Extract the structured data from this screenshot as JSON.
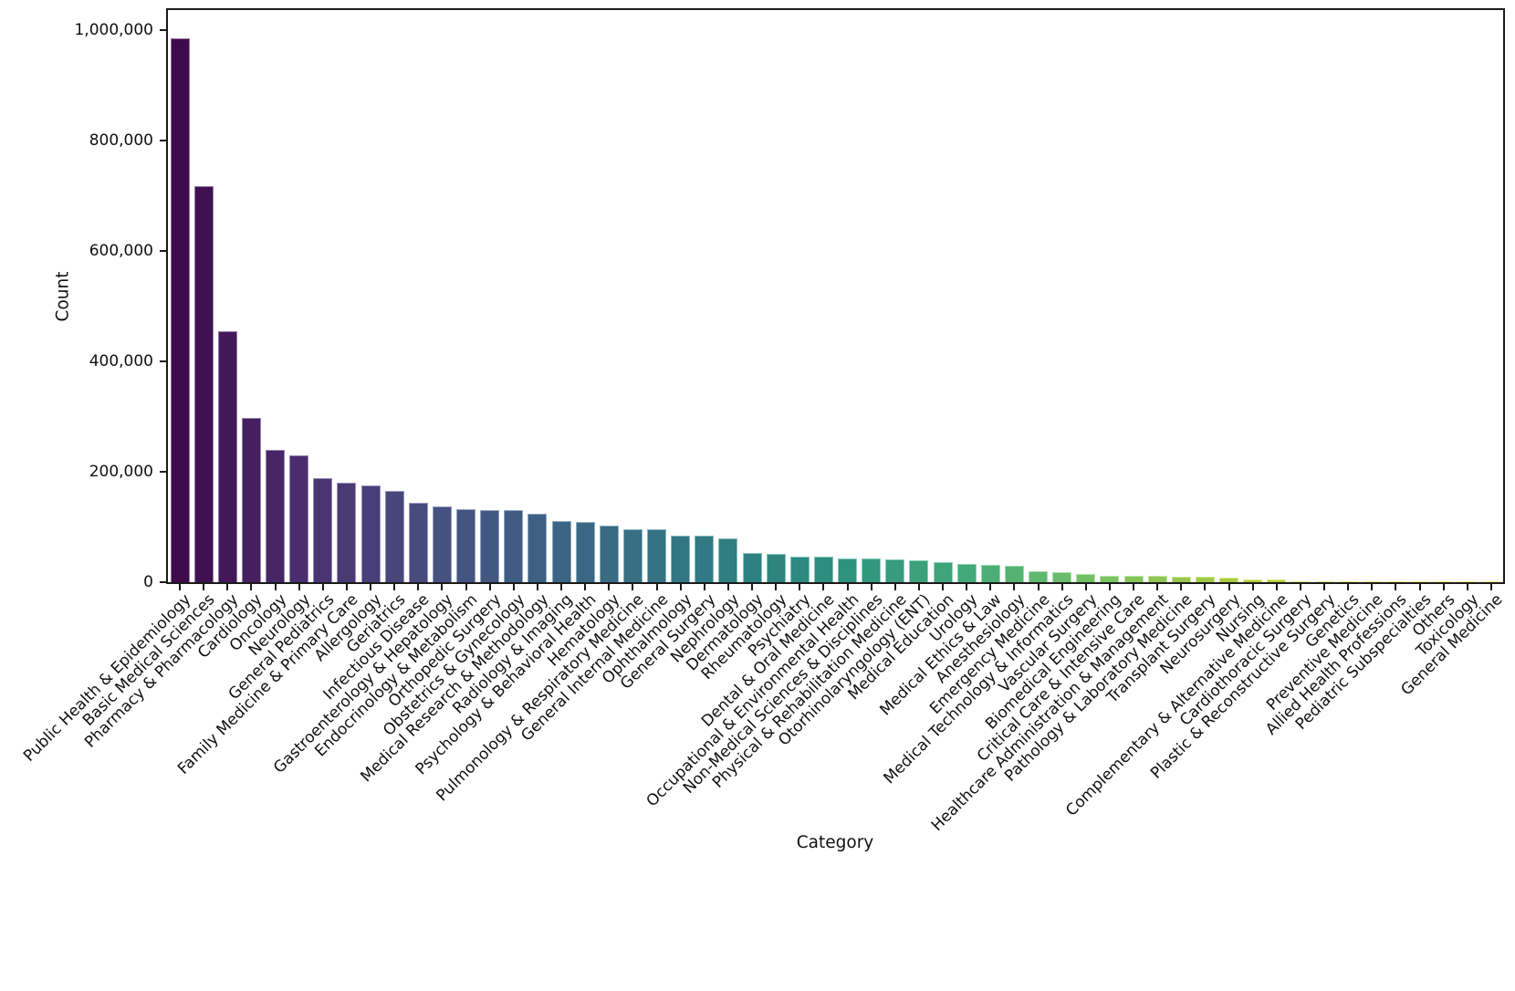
{
  "figure": {
    "background": "#ffffff",
    "spine_color": "#1a1a1a",
    "text_color": "#111111"
  },
  "chart_data": {
    "type": "bar",
    "title": "",
    "xlabel": "Category",
    "ylabel": "Count",
    "ylim": [
      0,
      1036000
    ],
    "grid": false,
    "legend": "none",
    "x_tick_rotation": 45,
    "bar_color_palette": "viridis-desaturated",
    "colormap_anchors": [
      "#440154",
      "#482878",
      "#3e4a89",
      "#31688e",
      "#26828e",
      "#1f9e89",
      "#35b779",
      "#6ece58",
      "#b5de2b",
      "#dfe318",
      "#fde725"
    ],
    "y_tick_values": [
      0,
      200000,
      400000,
      600000,
      800000,
      1000000
    ],
    "y_tick_labels": [
      "0",
      "200,000",
      "400,000",
      "600,000",
      "800,000",
      "1,000,000"
    ],
    "categories": [
      "Public Health & Epidemiology",
      "Basic Medical Sciences",
      "Pharmacy & Pharmacology",
      "Cardiology",
      "Oncology",
      "Neurology",
      "General Pediatrics",
      "Family Medicine & Primary Care",
      "Allergology",
      "Geriatrics",
      "Infectious Disease",
      "Gastroenterology & Hepatology",
      "Endocrinology & Metabolism",
      "Orthopedic Surgery",
      "Obstetrics & Gynecology",
      "Medical Research & Methodology",
      "Radiology & Imaging",
      "Psychology & Behavioral Health",
      "Hematology",
      "Pulmonology & Respiratory Medicine",
      "General Internal Medicine",
      "Ophthalmology",
      "General Surgery",
      "Nephrology",
      "Dermatology",
      "Rheumatology",
      "Psychiatry",
      "Dental & Oral Medicine",
      "Occupational & Environmental Health",
      "Non-Medical Sciences & Disciplines",
      "Physical & Rehabilitation Medicine",
      "Otorhinolaryngology (ENT)",
      "Medical Education",
      "Urology",
      "Medical Ethics & Law",
      "Anesthesiology",
      "Emergency Medicine",
      "Medical Technology & Informatics",
      "Vascular Surgery",
      "Biomedical Engineering",
      "Critical Care & Intensive Care",
      "Healthcare Administration & Management",
      "Pathology & Laboratory Medicine",
      "Transplant Surgery",
      "Neurosurgery",
      "Nursing",
      "Complementary & Alternative Medicine",
      "Cardiothoracic Surgery",
      "Plastic & Reconstructive Surgery",
      "Genetics",
      "Preventive Medicine",
      "Allied Health Professions",
      "Pediatric Subspecialties",
      "Others",
      "Toxicology",
      "General Medicine"
    ],
    "values": [
      985000,
      718000,
      455000,
      298000,
      239000,
      230000,
      188000,
      181000,
      175000,
      165000,
      144000,
      137000,
      132000,
      131000,
      130000,
      124000,
      110000,
      109000,
      103000,
      96500,
      96000,
      85000,
      83500,
      79500,
      52500,
      52000,
      47000,
      46500,
      42500,
      42500,
      42000,
      39000,
      37000,
      33000,
      32000,
      30500,
      19500,
      18000,
      15000,
      12000,
      11500,
      11000,
      10500,
      10000,
      9000,
      5800,
      4600,
      2100,
      1700,
      1600,
      1100,
      800,
      700,
      600,
      500,
      400
    ]
  }
}
